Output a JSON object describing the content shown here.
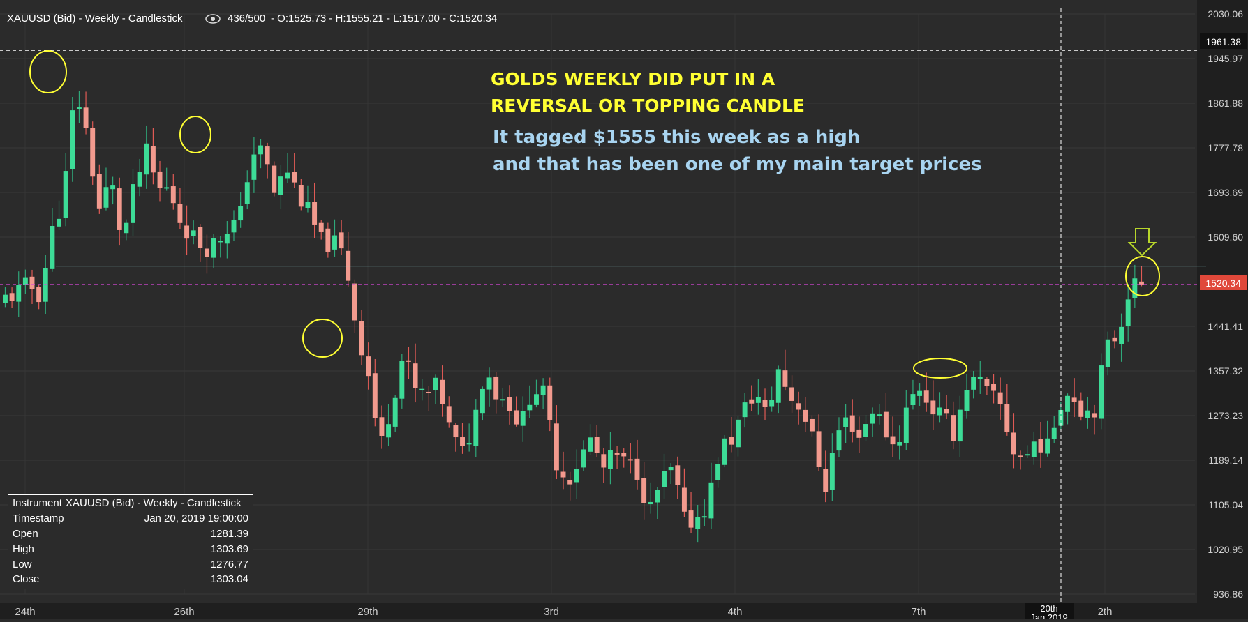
{
  "header": {
    "instrument": "XAUUSD (Bid) - Weekly - Candlestick",
    "view_count": "436/500",
    "ohlc": "O:1525.73 - H:1555.21 - L:1517.00 - C:1520.34"
  },
  "annotations": {
    "line1": "GOLDS WEEKLY DID PUT IN A",
    "line2": "REVERSAL OR TOPPING CANDLE",
    "line3": "It tagged $1555 this week as a high",
    "line4": "and that has been one of my main target prices"
  },
  "price_axis": {
    "ticks": [
      "2030.06",
      "1945.97",
      "1861.88",
      "1777.78",
      "1693.69",
      "1609.60",
      "1441.41",
      "1357.32",
      "1273.23",
      "1189.14",
      "1105.04",
      "1020.95",
      "936.86"
    ],
    "crosshair_label": "1961.38",
    "current_label": "1520.34"
  },
  "time_axis": {
    "ticks": [
      "24th",
      "26th",
      "29th",
      "3rd",
      "4th",
      "7th",
      "2th"
    ],
    "crosshair_label_1": "20th",
    "crosshair_label_2": "Jan 2019"
  },
  "info_box": {
    "instrument_label": "Instrument",
    "instrument_value": "XAUUSD (Bid) - Weekly - Candlestick",
    "rows": [
      {
        "label": "Timestamp",
        "value": "Jan 20, 2019 19:00:00"
      },
      {
        "label": "Open",
        "value": "1281.39"
      },
      {
        "label": "High",
        "value": "1303.69"
      },
      {
        "label": "Low",
        "value": "1276.77"
      },
      {
        "label": "Close",
        "value": "1303.04"
      }
    ]
  },
  "colors": {
    "background": "#2b2b2b",
    "up_candle": "#3ddc97",
    "down_candle": "#f29a8e",
    "current_price_line": "#d946d9",
    "current_price_badge": "#e0483a",
    "resistance_line": "#8fd6d6",
    "highlight": "#ffff33",
    "info_text": "#ffffff"
  },
  "chart_data": {
    "type": "candlestick",
    "title": "XAUUSD (Bid) - Weekly - Candlestick",
    "ylim": [
      936.86,
      2030.06
    ],
    "current_price": 1520.34,
    "crosshair_price": 1961.38,
    "resistance_level": 1555,
    "grid": true,
    "anchors": [
      [
        1480,
        1495
      ],
      [
        1520,
        1505
      ],
      [
        1490,
        1520
      ],
      [
        1505,
        1500
      ],
      [
        1620,
        1620
      ],
      [
        1700,
        1690
      ],
      [
        1880,
        1890
      ],
      [
        1810,
        1800
      ],
      [
        1640,
        1660
      ],
      [
        1700,
        1720
      ],
      [
        1610,
        1600
      ],
      [
        1660,
        1700
      ],
      [
        1780,
        1770
      ],
      [
        1680,
        1700
      ],
      [
        1720,
        1700
      ],
      [
        1650,
        1640
      ],
      [
        1600,
        1610
      ],
      [
        1620,
        1590
      ],
      [
        1580,
        1600
      ],
      [
        1620,
        1630
      ],
      [
        1650,
        1640
      ],
      [
        1780,
        1770
      ],
      [
        1790,
        1770
      ],
      [
        1700,
        1690
      ],
      [
        1720,
        1740
      ],
      [
        1700,
        1690
      ],
      [
        1660,
        1650
      ],
      [
        1620,
        1600
      ],
      [
        1590,
        1600
      ],
      [
        1600,
        1570
      ],
      [
        1450,
        1440
      ],
      [
        1360,
        1350
      ],
      [
        1200,
        1210
      ],
      [
        1290,
        1300
      ],
      [
        1380,
        1390
      ],
      [
        1330,
        1320
      ],
      [
        1300,
        1310
      ],
      [
        1320,
        1330
      ],
      [
        1240,
        1240
      ],
      [
        1210,
        1200
      ],
      [
        1250,
        1260
      ],
      [
        1340,
        1370
      ],
      [
        1320,
        1310
      ],
      [
        1310,
        1300
      ],
      [
        1260,
        1250
      ],
      [
        1340,
        1330
      ],
      [
        1320,
        1310
      ],
      [
        1200,
        1190
      ],
      [
        1140,
        1150
      ],
      [
        1180,
        1190
      ],
      [
        1220,
        1230
      ],
      [
        1160,
        1170
      ],
      [
        1210,
        1200
      ],
      [
        1190,
        1180
      ],
      [
        1180,
        1170
      ],
      [
        1100,
        1090
      ],
      [
        1140,
        1150
      ],
      [
        1160,
        1170
      ],
      [
        1080,
        1070
      ],
      [
        1080,
        1080
      ],
      [
        1090,
        1110
      ],
      [
        1180,
        1210
      ],
      [
        1220,
        1230
      ],
      [
        1260,
        1280
      ],
      [
        1300,
        1320
      ],
      [
        1280,
        1270
      ],
      [
        1340,
        1360
      ],
      [
        1320,
        1310
      ],
      [
        1300,
        1290
      ],
      [
        1230,
        1220
      ],
      [
        1130,
        1140
      ],
      [
        1220,
        1240
      ],
      [
        1250,
        1270
      ],
      [
        1240,
        1230
      ],
      [
        1280,
        1290
      ],
      [
        1260,
        1250
      ],
      [
        1220,
        1210
      ],
      [
        1270,
        1290
      ],
      [
        1340,
        1330
      ],
      [
        1300,
        1290
      ],
      [
        1280,
        1270
      ],
      [
        1250,
        1240
      ],
      [
        1320,
        1330
      ],
      [
        1340,
        1340
      ],
      [
        1320,
        1310
      ],
      [
        1300,
        1290
      ],
      [
        1220,
        1210
      ],
      [
        1190,
        1190
      ],
      [
        1220,
        1230
      ],
      [
        1200,
        1210
      ],
      [
        1280,
        1300
      ],
      [
        1320,
        1320
      ],
      [
        1290,
        1280
      ],
      [
        1280,
        1290
      ],
      [
        1380,
        1400
      ],
      [
        1420,
        1430
      ],
      [
        1500,
        1520
      ],
      [
        1525,
        1520
      ]
    ]
  }
}
